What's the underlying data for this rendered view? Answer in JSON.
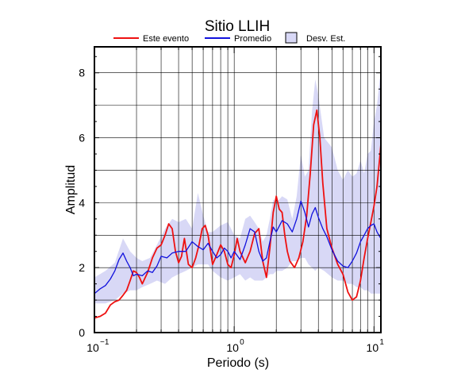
{
  "chart_data": {
    "type": "line",
    "title": "Sitio LLIH",
    "xlabel": "Periodo (s)",
    "ylabel": "Amplitud",
    "x_scale": "log",
    "xlim": [
      0.1,
      11.2
    ],
    "ylim": [
      0,
      8.8
    ],
    "grid": true,
    "legend_position": "top",
    "x_ticks": [
      0.1,
      1,
      10
    ],
    "x_tick_labels": [
      {
        "base": "10",
        "exp": "−1"
      },
      {
        "base": "10",
        "exp": "0"
      },
      {
        "base": "10",
        "exp": "1"
      }
    ],
    "y_ticks": [
      0,
      2,
      4,
      6,
      8
    ],
    "y_tick_labels": [
      "0",
      "2",
      "4",
      "6",
      "8"
    ],
    "legend": {
      "este_evento": "Este evento",
      "promedio": "Promedio",
      "desv_est": "Desv. Est."
    },
    "colors": {
      "este_evento": "#ee1111",
      "promedio": "#1111dd",
      "desv_est_fill": "#d8d8f6"
    },
    "series": [
      {
        "name": "Este evento",
        "x": [
          0.1,
          0.11,
          0.12,
          0.13,
          0.14,
          0.15,
          0.16,
          0.17,
          0.18,
          0.19,
          0.2,
          0.21,
          0.22,
          0.24,
          0.26,
          0.28,
          0.3,
          0.32,
          0.34,
          0.36,
          0.38,
          0.4,
          0.42,
          0.44,
          0.47,
          0.5,
          0.53,
          0.56,
          0.59,
          0.62,
          0.65,
          0.7,
          0.75,
          0.8,
          0.85,
          0.9,
          0.95,
          1.0,
          1.05,
          1.1,
          1.2,
          1.3,
          1.4,
          1.5,
          1.6,
          1.7,
          1.8,
          1.9,
          2.0,
          2.1,
          2.2,
          2.3,
          2.4,
          2.5,
          2.7,
          2.9,
          3.1,
          3.3,
          3.5,
          3.7,
          3.9,
          4.1,
          4.3,
          4.6,
          5.0,
          5.5,
          6.0,
          6.5,
          7.0,
          7.5,
          8.0,
          8.5,
          9.0,
          9.5,
          10.0,
          10.5,
          11.0,
          11.2
        ],
        "values": [
          0.45,
          0.5,
          0.6,
          0.85,
          0.95,
          1.0,
          1.15,
          1.3,
          1.6,
          1.9,
          1.85,
          1.7,
          1.5,
          1.85,
          2.3,
          2.6,
          2.7,
          3.0,
          3.35,
          3.2,
          2.5,
          2.15,
          2.35,
          2.9,
          2.1,
          2.0,
          2.3,
          2.7,
          3.2,
          3.3,
          3.0,
          2.1,
          2.4,
          2.7,
          2.5,
          2.1,
          2.0,
          2.4,
          2.9,
          2.5,
          2.15,
          2.5,
          3.05,
          3.2,
          2.2,
          1.7,
          2.6,
          3.7,
          4.2,
          3.8,
          3.7,
          3.0,
          2.5,
          2.2,
          2.0,
          2.3,
          2.8,
          3.6,
          4.9,
          6.4,
          6.85,
          6.0,
          4.6,
          3.2,
          2.6,
          2.1,
          1.8,
          1.25,
          1.0,
          1.1,
          1.6,
          2.3,
          2.9,
          3.4,
          3.9,
          4.5,
          5.4,
          5.8
        ]
      },
      {
        "name": "Promedio",
        "x": [
          0.1,
          0.11,
          0.12,
          0.13,
          0.14,
          0.15,
          0.16,
          0.17,
          0.18,
          0.19,
          0.2,
          0.22,
          0.24,
          0.26,
          0.28,
          0.3,
          0.33,
          0.36,
          0.4,
          0.45,
          0.5,
          0.55,
          0.6,
          0.65,
          0.7,
          0.75,
          0.8,
          0.85,
          0.9,
          0.95,
          1.0,
          1.1,
          1.2,
          1.3,
          1.4,
          1.5,
          1.6,
          1.7,
          1.8,
          1.9,
          2.0,
          2.2,
          2.4,
          2.6,
          2.8,
          3.0,
          3.2,
          3.4,
          3.6,
          3.8,
          4.0,
          4.3,
          4.6,
          5.0,
          5.5,
          6.0,
          6.5,
          7.0,
          7.5,
          8.0,
          8.5,
          9.0,
          9.5,
          10.0,
          10.5,
          11.0,
          11.2
        ],
        "values": [
          1.2,
          1.35,
          1.45,
          1.65,
          1.9,
          2.25,
          2.45,
          2.2,
          2.0,
          1.75,
          1.8,
          1.75,
          1.9,
          1.85,
          2.05,
          2.35,
          2.3,
          2.45,
          2.5,
          2.5,
          2.8,
          2.65,
          2.55,
          2.75,
          2.5,
          2.3,
          2.4,
          2.6,
          2.5,
          2.3,
          2.5,
          2.25,
          2.7,
          3.2,
          3.1,
          2.5,
          2.2,
          2.3,
          2.8,
          3.25,
          3.1,
          3.45,
          3.35,
          3.1,
          3.5,
          4.05,
          3.7,
          3.25,
          3.65,
          3.85,
          3.55,
          3.2,
          2.95,
          2.55,
          2.2,
          2.05,
          2.0,
          2.2,
          2.45,
          2.8,
          3.0,
          3.2,
          3.3,
          3.35,
          3.1,
          2.95,
          2.9
        ]
      }
    ],
    "band": {
      "name": "Desv. Est.",
      "x": [
        0.1,
        0.12,
        0.14,
        0.16,
        0.18,
        0.2,
        0.22,
        0.25,
        0.28,
        0.32,
        0.36,
        0.4,
        0.45,
        0.5,
        0.55,
        0.6,
        0.65,
        0.7,
        0.8,
        0.9,
        1.0,
        1.1,
        1.2,
        1.3,
        1.4,
        1.5,
        1.6,
        1.7,
        1.8,
        1.9,
        2.0,
        2.2,
        2.4,
        2.6,
        2.8,
        3.0,
        3.2,
        3.4,
        3.6,
        3.8,
        4.0,
        4.4,
        5.0,
        5.5,
        6.0,
        6.5,
        7.0,
        7.5,
        8.0,
        8.5,
        9.0,
        9.5,
        10.0,
        10.5,
        11.0,
        11.2
      ],
      "upper": [
        1.7,
        1.9,
        2.15,
        2.9,
        2.5,
        2.3,
        2.2,
        2.3,
        2.7,
        3.2,
        3.5,
        3.4,
        3.5,
        3.2,
        4.3,
        3.6,
        3.1,
        3.1,
        3.3,
        3.4,
        3.0,
        2.9,
        3.5,
        3.6,
        3.4,
        3.2,
        2.8,
        3.0,
        3.5,
        4.1,
        4.0,
        4.2,
        4.1,
        3.5,
        4.2,
        5.5,
        4.8,
        5.0,
        6.8,
        7.8,
        7.3,
        6.0,
        5.7,
        5.0,
        4.7,
        5.0,
        4.8,
        4.9,
        5.3,
        4.9,
        5.5,
        5.6,
        6.5,
        7.0,
        7.8,
        7.9
      ],
      "lower": [
        0.9,
        0.9,
        1.0,
        1.2,
        1.3,
        1.3,
        1.4,
        1.5,
        1.6,
        1.5,
        1.7,
        1.8,
        1.9,
        2.0,
        2.1,
        2.1,
        2.1,
        1.9,
        1.7,
        1.6,
        1.7,
        1.8,
        1.6,
        1.7,
        1.6,
        1.6,
        1.6,
        1.7,
        1.8,
        1.8,
        1.9,
        1.9,
        2.0,
        2.2,
        2.2,
        2.3,
        2.3,
        2.1,
        2.0,
        1.9,
        2.0,
        1.9,
        1.7,
        1.6,
        1.6,
        1.5,
        1.5,
        1.4,
        1.4,
        1.3,
        1.3,
        1.2,
        1.2,
        1.2,
        1.2,
        1.2
      ]
    }
  }
}
